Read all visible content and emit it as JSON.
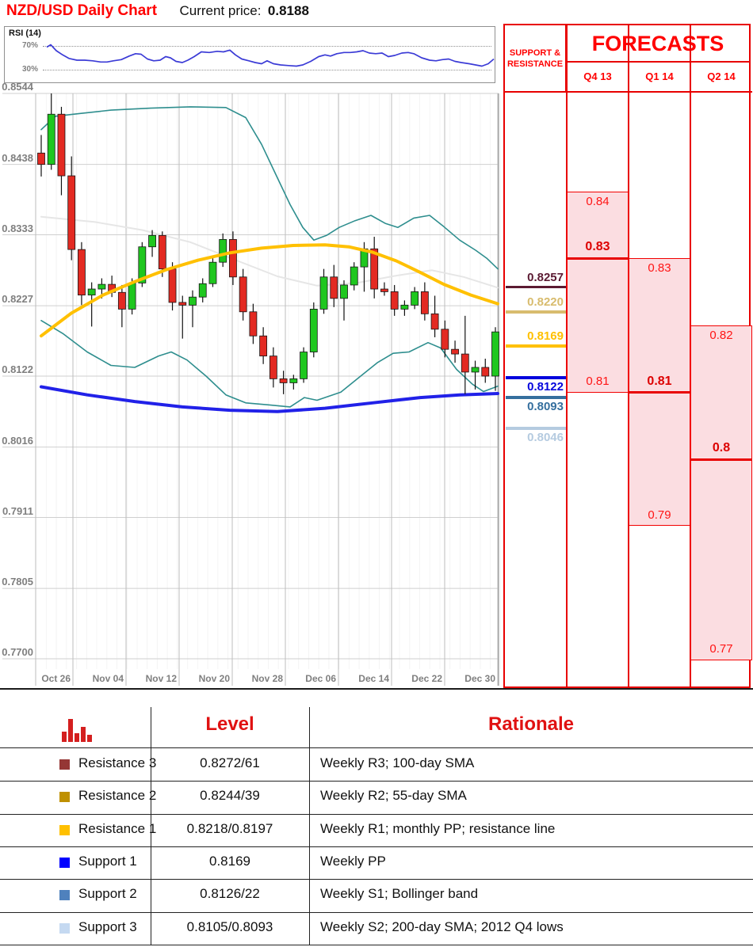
{
  "header": {
    "title": "NZD/USD Daily Chart",
    "price_label": "Current price:",
    "price_value": "0.8188"
  },
  "rsi": {
    "label": "RSI (14)",
    "upper_label": "70%",
    "lower_label": "30%",
    "upper": 70,
    "lower": 30,
    "line_color": "#3b3bd6",
    "values": [
      [
        58,
        68
      ],
      [
        63,
        72
      ],
      [
        70,
        62
      ],
      [
        78,
        55
      ],
      [
        86,
        49
      ],
      [
        96,
        46
      ],
      [
        106,
        46
      ],
      [
        116,
        45
      ],
      [
        126,
        43
      ],
      [
        134,
        43
      ],
      [
        142,
        45
      ],
      [
        152,
        47
      ],
      [
        162,
        53
      ],
      [
        170,
        57
      ],
      [
        177,
        56
      ],
      [
        185,
        48
      ],
      [
        193,
        45
      ],
      [
        201,
        46
      ],
      [
        208,
        52
      ],
      [
        214,
        50
      ],
      [
        221,
        44
      ],
      [
        229,
        42
      ],
      [
        236,
        46
      ],
      [
        244,
        52
      ],
      [
        253,
        60
      ],
      [
        263,
        59
      ],
      [
        273,
        61
      ],
      [
        281,
        60
      ],
      [
        289,
        63
      ],
      [
        296,
        55
      ],
      [
        304,
        48
      ],
      [
        313,
        45
      ],
      [
        321,
        42
      ],
      [
        329,
        40
      ],
      [
        336,
        45
      ],
      [
        344,
        40
      ],
      [
        353,
        38
      ],
      [
        363,
        37
      ],
      [
        373,
        36
      ],
      [
        381,
        38
      ],
      [
        391,
        44
      ],
      [
        401,
        52
      ],
      [
        409,
        55
      ],
      [
        416,
        53
      ],
      [
        424,
        57
      ],
      [
        433,
        59
      ],
      [
        441,
        59
      ],
      [
        449,
        60
      ],
      [
        457,
        62
      ],
      [
        465,
        58
      ],
      [
        473,
        57
      ],
      [
        481,
        58
      ],
      [
        489,
        52
      ],
      [
        497,
        54
      ],
      [
        506,
        58
      ],
      [
        514,
        59
      ],
      [
        521,
        57
      ],
      [
        531,
        50
      ],
      [
        541,
        46
      ],
      [
        549,
        45
      ],
      [
        557,
        47
      ],
      [
        565,
        48
      ],
      [
        573,
        44
      ],
      [
        581,
        42
      ],
      [
        591,
        40
      ],
      [
        599,
        38
      ],
      [
        607,
        36
      ],
      [
        615,
        40
      ],
      [
        622,
        48
      ]
    ]
  },
  "chart_data": {
    "type": "candlestick",
    "title": "NZD/USD Daily Chart",
    "ylim": [
      0.77,
      0.8544
    ],
    "y_ticks": [
      "0.8544",
      "0.8438",
      "0.8333",
      "0.8227",
      "0.8122",
      "0.8016",
      "0.7911",
      "0.7805",
      "0.7700"
    ],
    "x_ticks": [
      "Oct 26",
      "Nov 04",
      "Nov 12",
      "Nov 20",
      "Nov 28",
      "Dec 06",
      "Dec 14",
      "Dec 22",
      "Dec 30"
    ],
    "grid": true,
    "up_color": "#1fc71f",
    "down_color": "#e32a22",
    "wick_color": "#111111",
    "candles_ohlc": [
      [
        0.8455,
        0.8482,
        0.842,
        0.8438
      ],
      [
        0.8438,
        0.8544,
        0.843,
        0.8513
      ],
      [
        0.8513,
        0.8524,
        0.8392,
        0.8421
      ],
      [
        0.8421,
        0.845,
        0.8295,
        0.8311
      ],
      [
        0.8311,
        0.8322,
        0.8228,
        0.8243
      ],
      [
        0.8243,
        0.8262,
        0.8196,
        0.8252
      ],
      [
        0.8252,
        0.8268,
        0.8238,
        0.8259
      ],
      [
        0.8259,
        0.8272,
        0.824,
        0.8247
      ],
      [
        0.8247,
        0.8258,
        0.8195,
        0.8222
      ],
      [
        0.8222,
        0.8268,
        0.8214,
        0.8261
      ],
      [
        0.8261,
        0.8322,
        0.8255,
        0.8315
      ],
      [
        0.8315,
        0.834,
        0.83,
        0.8332
      ],
      [
        0.8332,
        0.8338,
        0.827,
        0.8282
      ],
      [
        0.8282,
        0.8292,
        0.822,
        0.8232
      ],
      [
        0.8232,
        0.8242,
        0.8178,
        0.8228
      ],
      [
        0.8228,
        0.825,
        0.8195,
        0.824
      ],
      [
        0.824,
        0.8268,
        0.8232,
        0.826
      ],
      [
        0.826,
        0.8298,
        0.8255,
        0.8292
      ],
      [
        0.8292,
        0.8335,
        0.8285,
        0.8326
      ],
      [
        0.8326,
        0.8338,
        0.8258,
        0.827
      ],
      [
        0.827,
        0.8282,
        0.8205,
        0.8218
      ],
      [
        0.8218,
        0.823,
        0.817,
        0.8182
      ],
      [
        0.8182,
        0.8195,
        0.814,
        0.8152
      ],
      [
        0.8152,
        0.8165,
        0.8105,
        0.8118
      ],
      [
        0.8118,
        0.813,
        0.8095,
        0.8112
      ],
      [
        0.8112,
        0.8124,
        0.8102,
        0.8118
      ],
      [
        0.8118,
        0.8165,
        0.8112,
        0.8158
      ],
      [
        0.8158,
        0.8232,
        0.815,
        0.8222
      ],
      [
        0.8222,
        0.8282,
        0.8215,
        0.827
      ],
      [
        0.827,
        0.8288,
        0.8225,
        0.8238
      ],
      [
        0.8238,
        0.8265,
        0.8205,
        0.8258
      ],
      [
        0.8258,
        0.8292,
        0.825,
        0.8285
      ],
      [
        0.8285,
        0.8322,
        0.8248,
        0.8312
      ],
      [
        0.8312,
        0.833,
        0.8238,
        0.8252
      ],
      [
        0.8252,
        0.8262,
        0.8242,
        0.8248
      ],
      [
        0.8248,
        0.8258,
        0.8212,
        0.8222
      ],
      [
        0.8222,
        0.8235,
        0.8212,
        0.8228
      ],
      [
        0.8228,
        0.8255,
        0.8222,
        0.8248
      ],
      [
        0.8248,
        0.8262,
        0.8205,
        0.8215
      ],
      [
        0.8215,
        0.8242,
        0.818,
        0.8192
      ],
      [
        0.8192,
        0.8205,
        0.815,
        0.8162
      ],
      [
        0.8162,
        0.8175,
        0.8142,
        0.8155
      ],
      [
        0.8155,
        0.8212,
        0.8095,
        0.8128
      ],
      [
        0.8128,
        0.8145,
        0.8102,
        0.8135
      ],
      [
        0.8135,
        0.8148,
        0.8112,
        0.8122
      ],
      [
        0.8122,
        0.8195,
        0.81,
        0.8188
      ]
    ],
    "overlays": [
      {
        "name": "sma-100",
        "color": "#e6e6e6",
        "width": 2,
        "points": [
          [
            52,
            0.836
          ],
          [
            120,
            0.8352
          ],
          [
            180,
            0.834
          ],
          [
            240,
            0.8322
          ],
          [
            300,
            0.8294
          ],
          [
            350,
            0.8271
          ],
          [
            400,
            0.8257
          ],
          [
            450,
            0.8261
          ],
          [
            500,
            0.8272
          ],
          [
            545,
            0.828
          ],
          [
            585,
            0.827
          ],
          [
            628,
            0.8254
          ]
        ]
      },
      {
        "name": "bollinger-upper",
        "color": "#2e8e8e",
        "width": 1.6,
        "points": [
          [
            52,
            0.849
          ],
          [
            70,
            0.851
          ],
          [
            100,
            0.8514
          ],
          [
            140,
            0.8519
          ],
          [
            190,
            0.8522
          ],
          [
            240,
            0.8524
          ],
          [
            285,
            0.8523
          ],
          [
            310,
            0.8508
          ],
          [
            330,
            0.8468
          ],
          [
            350,
            0.8418
          ],
          [
            366,
            0.8378
          ],
          [
            382,
            0.8344
          ],
          [
            396,
            0.8325
          ],
          [
            412,
            0.8332
          ],
          [
            428,
            0.8344
          ],
          [
            448,
            0.8354
          ],
          [
            468,
            0.8362
          ],
          [
            486,
            0.835
          ],
          [
            502,
            0.8344
          ],
          [
            522,
            0.8358
          ],
          [
            542,
            0.8362
          ],
          [
            560,
            0.8345
          ],
          [
            580,
            0.8325
          ],
          [
            600,
            0.831
          ],
          [
            614,
            0.8298
          ],
          [
            628,
            0.8282
          ]
        ]
      },
      {
        "name": "bollinger-lower",
        "color": "#2e8e8e",
        "width": 1.6,
        "points": [
          [
            52,
            0.8205
          ],
          [
            80,
            0.8185
          ],
          [
            110,
            0.8158
          ],
          [
            140,
            0.8138
          ],
          [
            170,
            0.8135
          ],
          [
            200,
            0.8152
          ],
          [
            216,
            0.8158
          ],
          [
            236,
            0.8146
          ],
          [
            260,
            0.8122
          ],
          [
            285,
            0.8094
          ],
          [
            310,
            0.8082
          ],
          [
            340,
            0.8079
          ],
          [
            366,
            0.8076
          ],
          [
            384,
            0.809
          ],
          [
            400,
            0.8086
          ],
          [
            430,
            0.8098
          ],
          [
            455,
            0.8122
          ],
          [
            476,
            0.8142
          ],
          [
            496,
            0.8156
          ],
          [
            516,
            0.8158
          ],
          [
            540,
            0.8172
          ],
          [
            556,
            0.8164
          ],
          [
            576,
            0.8132
          ],
          [
            596,
            0.811
          ],
          [
            610,
            0.8099
          ],
          [
            628,
            0.8107
          ]
        ]
      },
      {
        "name": "sma-200",
        "color": "#2121e8",
        "width": 4,
        "points": [
          [
            52,
            0.8106
          ],
          [
            110,
            0.8094
          ],
          [
            170,
            0.8084
          ],
          [
            230,
            0.8076
          ],
          [
            290,
            0.8071
          ],
          [
            350,
            0.8069
          ],
          [
            410,
            0.8074
          ],
          [
            470,
            0.8082
          ],
          [
            530,
            0.809
          ],
          [
            580,
            0.8094
          ],
          [
            628,
            0.8096
          ]
        ]
      },
      {
        "name": "sma-55",
        "color": "#ffc000",
        "width": 4,
        "points": [
          [
            52,
            0.8182
          ],
          [
            90,
            0.8216
          ],
          [
            130,
            0.8243
          ],
          [
            170,
            0.8263
          ],
          [
            210,
            0.8281
          ],
          [
            250,
            0.8295
          ],
          [
            290,
            0.8306
          ],
          [
            330,
            0.8313
          ],
          [
            370,
            0.8317
          ],
          [
            410,
            0.8318
          ],
          [
            440,
            0.8315
          ],
          [
            470,
            0.8307
          ],
          [
            500,
            0.8294
          ],
          [
            530,
            0.8277
          ],
          [
            560,
            0.8259
          ],
          [
            594,
            0.8243
          ],
          [
            628,
            0.823
          ]
        ]
      }
    ]
  },
  "forecasts": {
    "sr_header": "SUPPORT & RESISTANCE",
    "title": "FORECASTS",
    "box_fill": "#fbdde1",
    "accent": "#e80000",
    "columns": [
      {
        "label": "Q4 13",
        "high": 0.84,
        "pivot": 0.83,
        "low": 0.81,
        "high_label": "0.84",
        "pivot_label": "0.83",
        "low_label": "0.81"
      },
      {
        "label": "Q1 14",
        "high": 0.83,
        "pivot": 0.81,
        "low": 0.79,
        "high_label": "0.83",
        "pivot_label": "0.81",
        "low_label": "0.79"
      },
      {
        "label": "Q2 14",
        "high": 0.82,
        "pivot": 0.8,
        "low": 0.77,
        "high_label": "0.82",
        "pivot_label": "0.8",
        "low_label": "0.77"
      }
    ]
  },
  "sr_column": {
    "items": [
      {
        "value": "0.8257",
        "price": 0.8257,
        "color": "#5b1a32",
        "thickness": 3,
        "label_above": true
      },
      {
        "value": "0.8220",
        "price": 0.822,
        "color": "#d8bc6e",
        "thickness": 4,
        "label_above": true
      },
      {
        "value": "0.8169",
        "price": 0.8169,
        "color": "#ffc000",
        "thickness": 4,
        "label_above": true
      },
      {
        "value": "0.8122",
        "price": 0.8122,
        "color": "#0505dd",
        "thickness": 4,
        "label_above": false
      },
      {
        "value": "0.8093",
        "price": 0.8093,
        "color": "#356f9e",
        "thickness": 4,
        "label_above": false
      },
      {
        "value": "0.8046",
        "price": 0.8046,
        "color": "#b5cbe0",
        "thickness": 4,
        "label_above": false
      }
    ]
  },
  "table": {
    "level_header": "Level",
    "rationale_header": "Rationale",
    "icon_color": "#d41f1f",
    "icon_bars": [
      13,
      29,
      11,
      19,
      9
    ],
    "rows": [
      {
        "swatch": "#953735",
        "label": "Resistance 3",
        "level": "0.8272/61",
        "rationale": "Weekly R3; 100-day SMA"
      },
      {
        "swatch": "#bf9000",
        "label": "Resistance 2",
        "level": "0.8244/39",
        "rationale": "Weekly R2; 55-day SMA"
      },
      {
        "swatch": "#ffc000",
        "label": "Resistance 1",
        "level": "0.8218/0.8197",
        "rationale": "Weekly R1; monthly PP; resistance line"
      },
      {
        "swatch": "#0000ff",
        "label": "Support 1",
        "level": "0.8169",
        "rationale": "Weekly PP"
      },
      {
        "swatch": "#4f81bd",
        "label": "Support 2",
        "level": "0.8126/22",
        "rationale": "Weekly S1; Bollinger band"
      },
      {
        "swatch": "#c5d9f1",
        "label": "Support 3",
        "level": "0.8105/0.8093",
        "rationale": "Weekly S2; 200-day SMA; 2012 Q4 lows"
      }
    ]
  }
}
